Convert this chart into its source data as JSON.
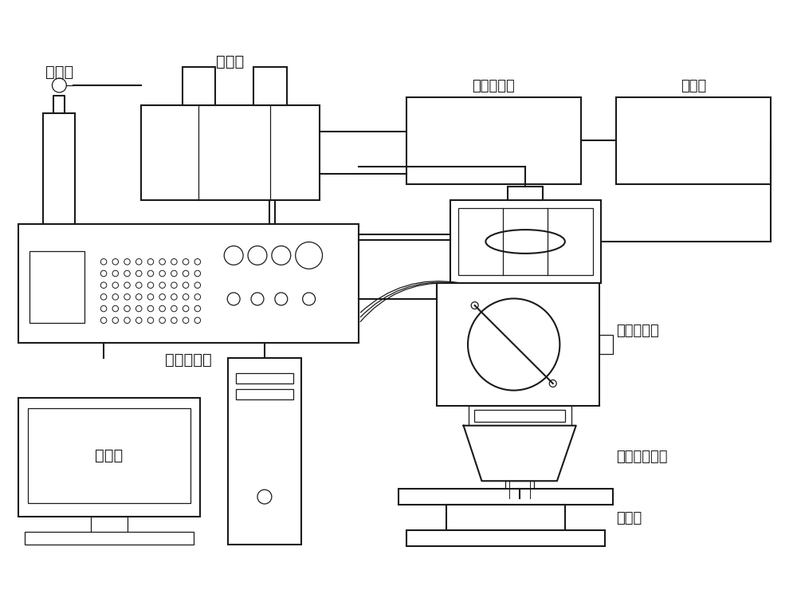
{
  "bg_color": "#ffffff",
  "line_color": "#1a1a1a",
  "lw": 1.5,
  "lw_thin": 0.9,
  "figsize": [
    10.0,
    7.4
  ],
  "dpi": 100,
  "xlim": [
    0,
    10
  ],
  "ylim": [
    0,
    7.4
  ],
  "labels": {
    "argon": "氯气瓶",
    "powder_feeder": "送粉器",
    "air_compressor": "空气压缩机",
    "heat_exchanger": "换热器",
    "fiber_laser": "光纤激光器",
    "coaxial_head": "同轴燕覆头",
    "controller": "控制器",
    "cooling_device": "环形冷却装置",
    "worktable": "工作台"
  },
  "label_fs": 14,
  "label_fs_sm": 13
}
